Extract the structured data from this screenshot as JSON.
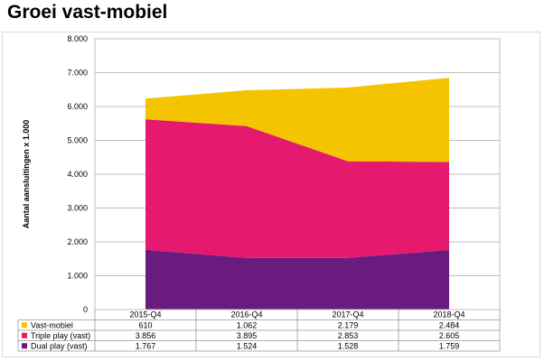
{
  "page_title": "Groei vast-mobiel",
  "chart_data": {
    "type": "area",
    "stacked": true,
    "title": "Groei vast-mobiel",
    "xlabel": "",
    "ylabel": "Aantal aansluitingen x 1.000",
    "ylim": [
      0,
      8000
    ],
    "yticks": [
      "0",
      "1.000",
      "2.000",
      "3.000",
      "4.000",
      "5.000",
      "6.000",
      "7.000",
      "8.000"
    ],
    "grid": true,
    "legend_placement": "table-below",
    "categories": [
      "2015-Q4",
      "2016-Q4",
      "2017-Q4",
      "2018-Q4"
    ],
    "series": [
      {
        "name": "Dual play (vast)",
        "color": "#6a1b7e",
        "values": [
          1767,
          1524,
          1528,
          1759
        ],
        "labels": [
          "1.767",
          "1.524",
          "1.528",
          "1.759"
        ]
      },
      {
        "name": "Triple play (vast)",
        "color": "#e5196e",
        "values": [
          3856,
          3895,
          2853,
          2605
        ],
        "labels": [
          "3.856",
          "3.895",
          "2.853",
          "2.605"
        ]
      },
      {
        "name": "Vast-mobiel",
        "color": "#f5c400",
        "values": [
          610,
          1062,
          2179,
          2484
        ],
        "labels": [
          "610",
          "1.062",
          "2.179",
          "2.484"
        ]
      }
    ],
    "table_row_order": [
      "Vast-mobiel",
      "Triple play (vast)",
      "Dual play (vast)"
    ]
  }
}
